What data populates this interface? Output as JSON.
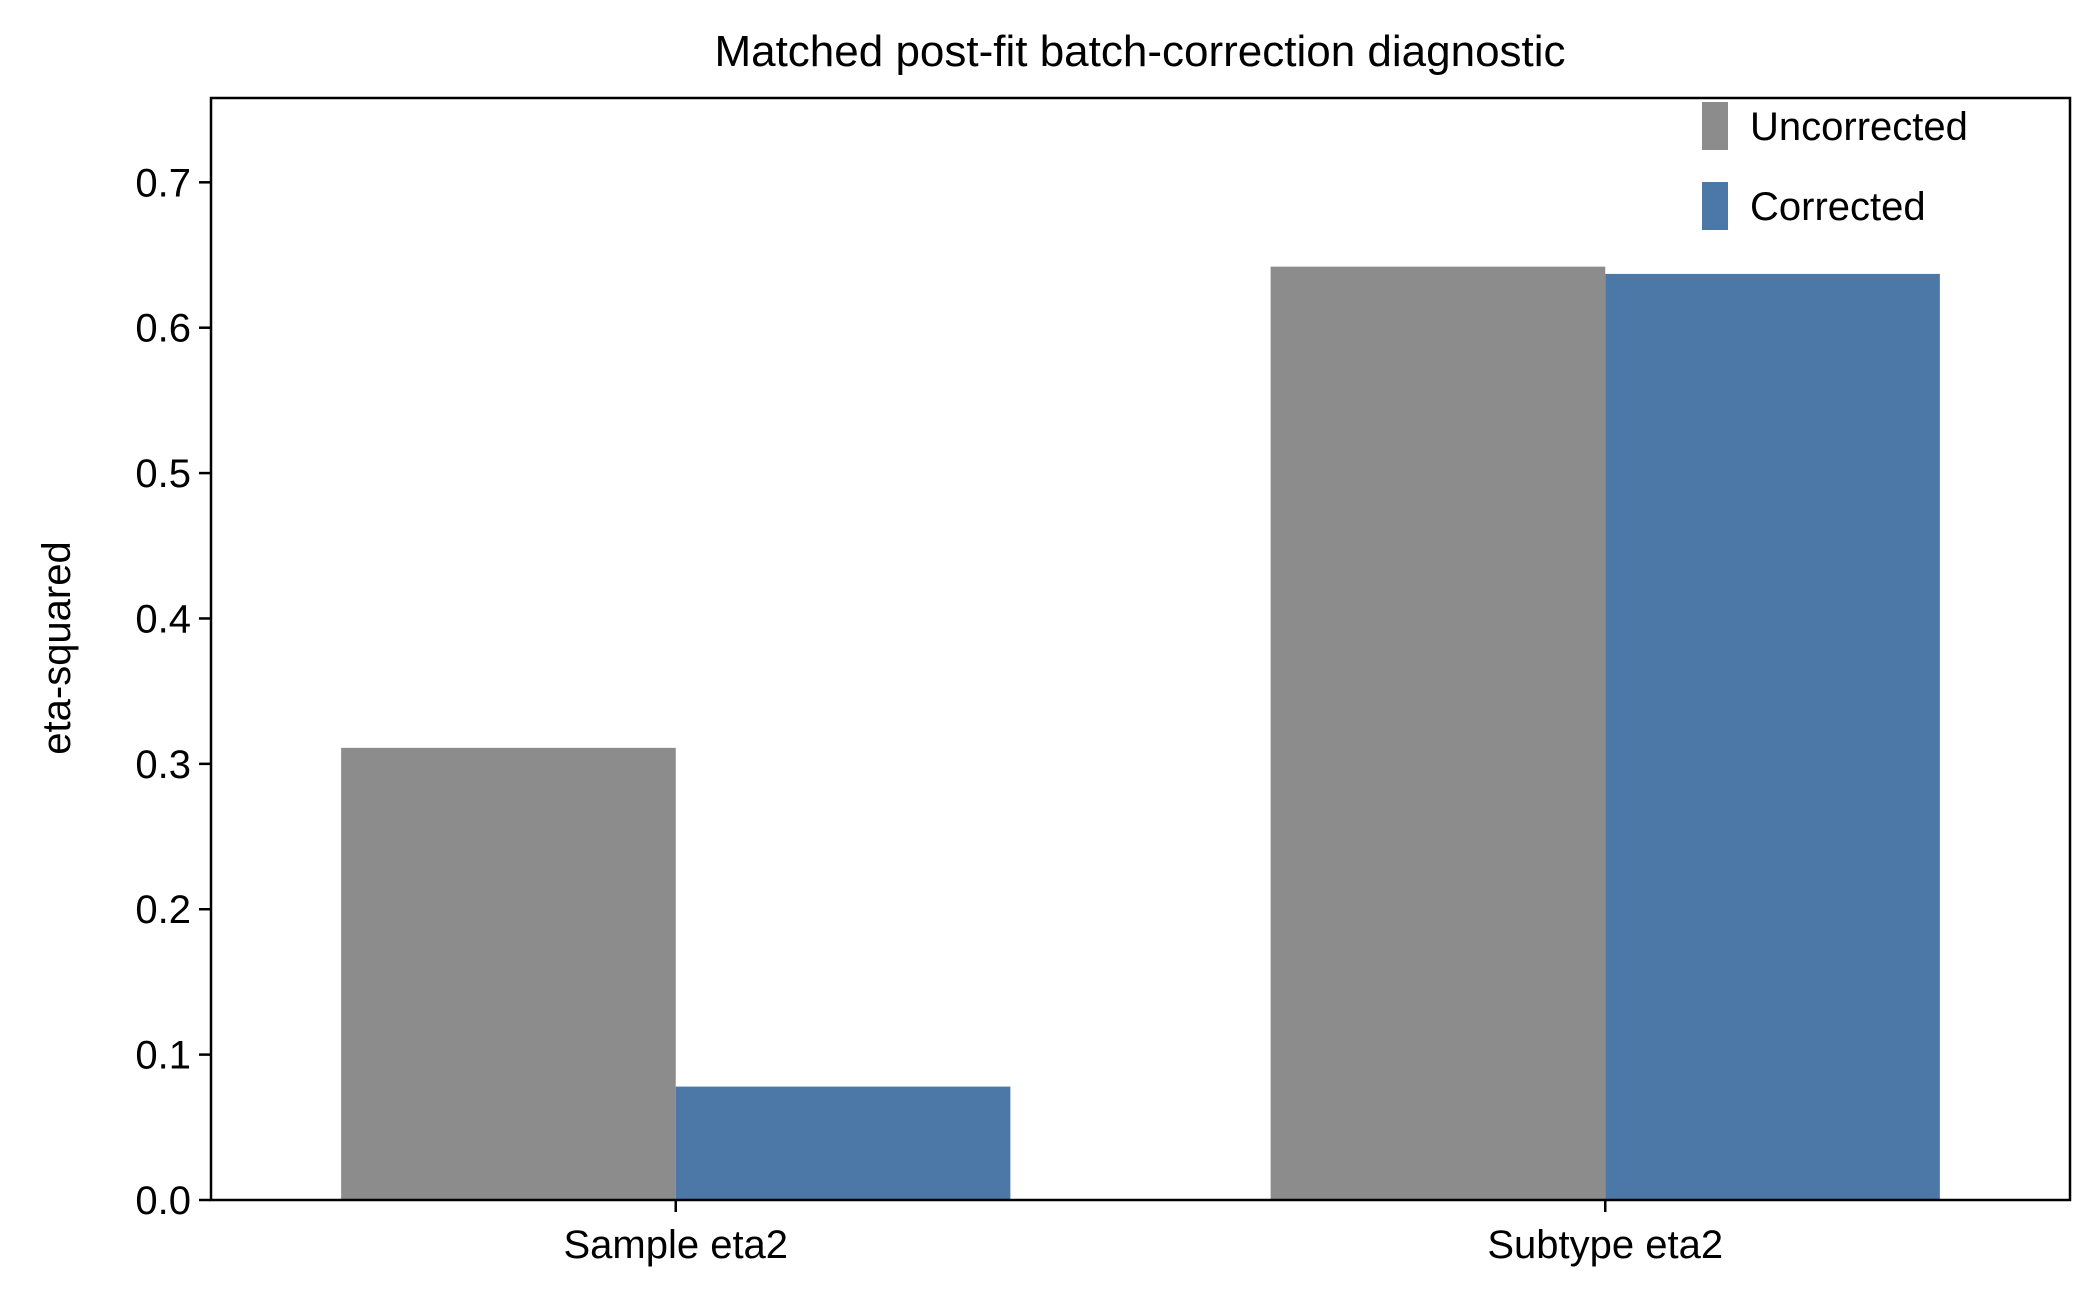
{
  "chart_data": {
    "type": "bar",
    "title": "Matched post-fit batch-correction diagnostic",
    "xlabel": "",
    "ylabel": "eta-squared",
    "categories": [
      "Sample eta2",
      "Subtype eta2"
    ],
    "series": [
      {
        "name": "Uncorrected",
        "color": "#8c8c8c",
        "values": [
          0.311,
          0.642
        ]
      },
      {
        "name": "Corrected",
        "color": "#4c78a8",
        "values": [
          0.078,
          0.637
        ]
      }
    ],
    "ylim": [
      0,
      0.758
    ],
    "yticks": [
      0.0,
      0.1,
      0.2,
      0.3,
      0.4,
      0.5,
      0.6,
      0.7
    ],
    "ytick_labels": [
      "0.0",
      "0.1",
      "0.2",
      "0.3",
      "0.4",
      "0.5",
      "0.6",
      "0.7"
    ],
    "grid": false,
    "legend_position": "top-right"
  }
}
